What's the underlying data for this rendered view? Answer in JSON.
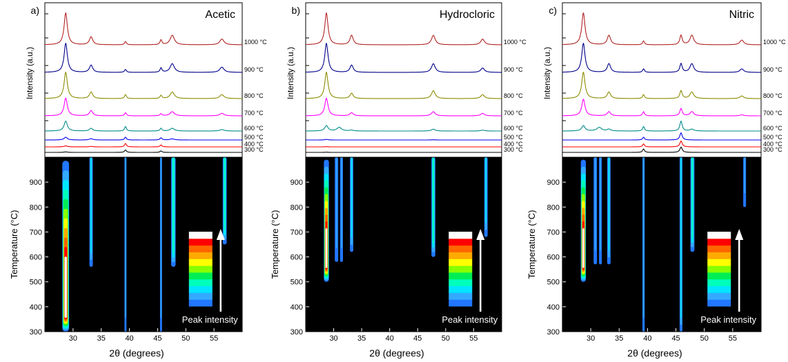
{
  "figure": {
    "xlabel": "2θ (degrees)",
    "ylabel_top": "Intensity (a.u.)",
    "ylabel_bottom": "Temperature (°C)",
    "colorbar_label": "Peak intensity",
    "x_ticks": [
      30,
      35,
      40,
      45,
      50,
      55
    ],
    "y_ticks": [
      300,
      400,
      500,
      600,
      700,
      800,
      900
    ]
  },
  "colors": {
    "trace_colors": {
      "300": "#000000",
      "400": "#ff0000",
      "500": "#0000ee",
      "600": "#008b8b",
      "700": "#ff00ff",
      "800": "#8b8b00",
      "900": "#00008b",
      "1000": "#b22222"
    },
    "colormap": [
      "#2277ff",
      "#33aaff",
      "#00e5ff",
      "#00ffbb",
      "#00ee55",
      "#88ff00",
      "#ffff00",
      "#ffaa00",
      "#ff6600",
      "#ff0000",
      "#ffffff"
    ]
  },
  "chart_data": [
    {
      "panel": "a)",
      "title": "Acetic",
      "type": "line",
      "x_range": [
        25,
        60
      ],
      "temperatures": [
        "300 °C",
        "400 °C",
        "500 °C",
        "600 °C",
        "700 °C",
        "800 °C",
        "900 °C",
        "1000 °C"
      ],
      "peaks": [
        {
          "pos": 28.7,
          "h": [
            0.05,
            0.1,
            0.25,
            0.55,
            0.85,
            1.0,
            1.0,
            1.0
          ],
          "w": 0.35
        },
        {
          "pos": 33.2,
          "h": [
            0.0,
            0.05,
            0.12,
            0.15,
            0.25,
            0.25,
            0.25,
            0.25
          ],
          "w": 0.35
        },
        {
          "pos": 39.3,
          "h": [
            0.25,
            0.35,
            0.25,
            0.25,
            0.15,
            0.15,
            0.1,
            0.1
          ],
          "w": 0.2
        },
        {
          "pos": 45.6,
          "h": [
            0.15,
            0.2,
            0.2,
            0.15,
            0.1,
            0.12,
            0.15,
            0.15
          ],
          "w": 0.2
        },
        {
          "pos": 47.6,
          "h": [
            0.0,
            0.0,
            0.1,
            0.15,
            0.2,
            0.25,
            0.3,
            0.3
          ],
          "w": 0.45
        },
        {
          "pos": 56.4,
          "h": [
            0.0,
            0.0,
            0.0,
            0.08,
            0.12,
            0.15,
            0.18,
            0.18
          ],
          "w": 0.45
        }
      ],
      "contour": {
        "type": "heatmap",
        "ylabel": "Temperature (°C)",
        "x_range": [
          25,
          60
        ],
        "y_range": [
          300,
          1000
        ],
        "lines": [
          {
            "pos": 28.7,
            "start": 300,
            "max": 10,
            "w": 0.6
          },
          {
            "pos": 33.2,
            "start": 560,
            "max": 2,
            "w": 0.3
          },
          {
            "pos": 39.3,
            "start": 300,
            "max": 1,
            "w": 0.18
          },
          {
            "pos": 45.6,
            "start": 300,
            "max": 1,
            "w": 0.18
          },
          {
            "pos": 47.8,
            "start": 560,
            "max": 3,
            "w": 0.4
          },
          {
            "pos": 56.9,
            "start": 650,
            "max": 3,
            "w": 0.35
          }
        ]
      }
    },
    {
      "panel": "b)",
      "title": "Hydrocloric",
      "type": "line",
      "x_range": [
        25,
        60
      ],
      "temperatures": [
        "300 °C",
        "400 °C",
        "500 °C",
        "600 °C",
        "700 °C",
        "800 °C",
        "900 °C",
        "1000 °C"
      ],
      "peaks": [
        {
          "pos": 28.7,
          "h": [
            0.02,
            0.02,
            0.05,
            0.3,
            0.85,
            1.0,
            1.0,
            1.0
          ],
          "w": 0.35
        },
        {
          "pos": 33.2,
          "h": [
            0.0,
            0.0,
            0.0,
            0.05,
            0.15,
            0.2,
            0.25,
            0.3
          ],
          "w": 0.35
        },
        {
          "pos": 31.0,
          "h": [
            0.0,
            0.0,
            0.0,
            0.2,
            0.0,
            0.0,
            0.0,
            0.0
          ],
          "w": 0.5
        },
        {
          "pos": 47.8,
          "h": [
            0.0,
            0.0,
            0.02,
            0.1,
            0.2,
            0.3,
            0.3,
            0.3
          ],
          "w": 0.4
        },
        {
          "pos": 56.6,
          "h": [
            0.0,
            0.0,
            0.0,
            0.05,
            0.12,
            0.15,
            0.15,
            0.18
          ],
          "w": 0.4
        }
      ],
      "contour": {
        "type": "heatmap",
        "ylabel": "Temperature (°C)",
        "x_range": [
          25,
          60
        ],
        "y_range": [
          300,
          1000
        ],
        "lines": [
          {
            "pos": 28.7,
            "start": 500,
            "max": 10,
            "w": 0.45
          },
          {
            "pos": 30.5,
            "start": 580,
            "max": 1,
            "w": 0.3
          },
          {
            "pos": 31.4,
            "start": 580,
            "max": 1,
            "w": 0.25
          },
          {
            "pos": 33.2,
            "start": 620,
            "max": 2,
            "w": 0.3
          },
          {
            "pos": 47.8,
            "start": 600,
            "max": 3,
            "w": 0.35
          },
          {
            "pos": 57.2,
            "start": 680,
            "max": 2,
            "w": 0.3
          }
        ]
      }
    },
    {
      "panel": "c)",
      "title": "Nitric",
      "type": "line",
      "x_range": [
        25,
        60
      ],
      "temperatures": [
        "300 °C",
        "400 °C",
        "500 °C",
        "600 °C",
        "700 °C",
        "800 °C",
        "900 °C",
        "1000 °C"
      ],
      "peaks": [
        {
          "pos": 28.7,
          "h": [
            0.0,
            0.0,
            0.0,
            0.3,
            0.8,
            1.0,
            1.0,
            1.0
          ],
          "w": 0.35
        },
        {
          "pos": 31.5,
          "h": [
            0.0,
            0.0,
            0.0,
            0.2,
            0.0,
            0.0,
            0.0,
            0.0
          ],
          "w": 0.5
        },
        {
          "pos": 33.2,
          "h": [
            0.0,
            0.0,
            0.0,
            0.1,
            0.2,
            0.25,
            0.3,
            0.3
          ],
          "w": 0.35
        },
        {
          "pos": 39.3,
          "h": [
            0.35,
            0.3,
            0.25,
            0.25,
            0.2,
            0.15,
            0.12,
            0.12
          ],
          "w": 0.2
        },
        {
          "pos": 45.9,
          "h": [
            0.55,
            0.6,
            0.65,
            0.55,
            0.35,
            0.3,
            0.3,
            0.3
          ],
          "w": 0.25
        },
        {
          "pos": 47.8,
          "h": [
            0.0,
            0.0,
            0.0,
            0.1,
            0.2,
            0.25,
            0.3,
            0.3
          ],
          "w": 0.4
        },
        {
          "pos": 56.6,
          "h": [
            0.0,
            0.0,
            0.0,
            0.0,
            0.05,
            0.1,
            0.12,
            0.15
          ],
          "w": 0.4
        }
      ],
      "contour": {
        "type": "heatmap",
        "ylabel": "Temperature (°C)",
        "x_range": [
          25,
          60
        ],
        "y_range": [
          300,
          1000
        ],
        "lines": [
          {
            "pos": 28.7,
            "start": 500,
            "max": 10,
            "w": 0.45
          },
          {
            "pos": 30.8,
            "start": 570,
            "max": 1,
            "w": 0.3
          },
          {
            "pos": 31.7,
            "start": 570,
            "max": 1,
            "w": 0.25
          },
          {
            "pos": 33.2,
            "start": 570,
            "max": 2,
            "w": 0.3
          },
          {
            "pos": 39.3,
            "start": 300,
            "max": 1,
            "w": 0.2
          },
          {
            "pos": 45.9,
            "start": 300,
            "max": 2,
            "w": 0.25
          },
          {
            "pos": 47.9,
            "start": 620,
            "max": 3,
            "w": 0.35
          },
          {
            "pos": 57.1,
            "start": 800,
            "max": 1,
            "w": 0.25
          }
        ]
      }
    }
  ]
}
